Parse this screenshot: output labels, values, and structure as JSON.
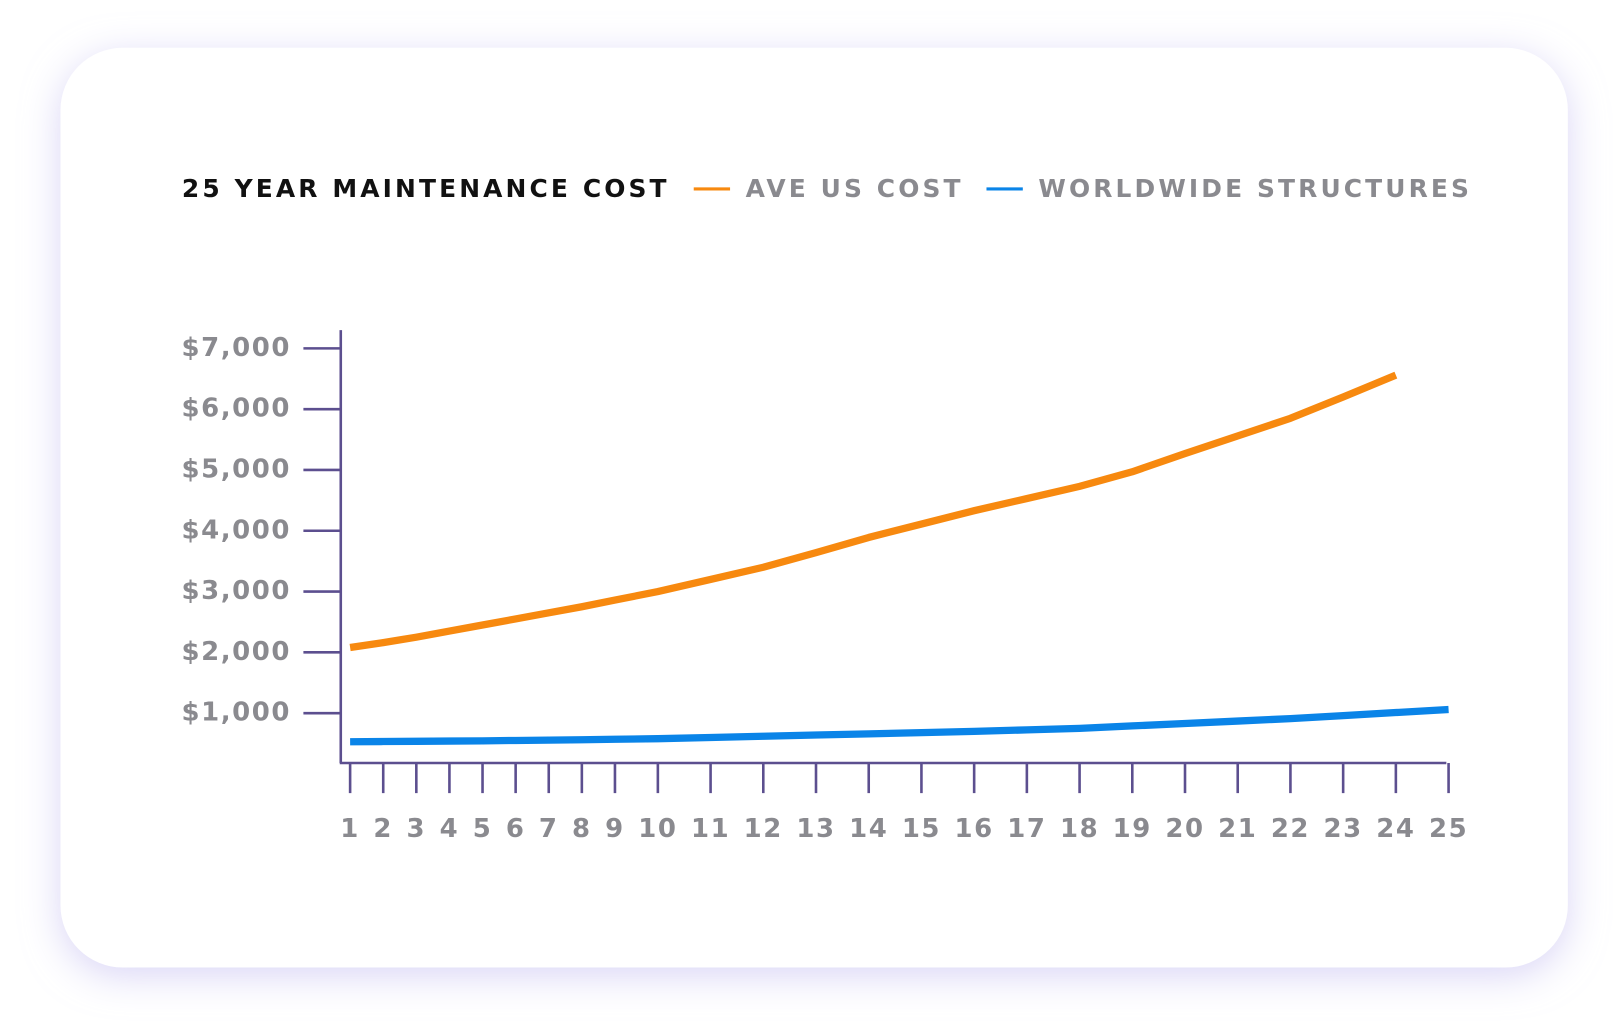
{
  "chart_data": {
    "type": "line",
    "title": "25 YEAR MAINTENANCE COST",
    "categories": [
      "1",
      "2",
      "3",
      "4",
      "5",
      "6",
      "7",
      "8",
      "9",
      "10",
      "11",
      "12",
      "13",
      "14",
      "15",
      "16",
      "17",
      "18",
      "19",
      "20",
      "21",
      "22",
      "23",
      "24",
      "25"
    ],
    "series": [
      {
        "name": "AVE US COST",
        "color": "#f7890f",
        "values": [
          2080,
          2160,
          2250,
          2350,
          2450,
          2550,
          2650,
          2750,
          2860,
          3000,
          3200,
          3400,
          3640,
          3890,
          4110,
          4330,
          4530,
          4730,
          4970,
          5270,
          5560,
          5850,
          6200,
          6560,
          null
        ]
      },
      {
        "name": "WORLDWIDE STRUCTURES",
        "color": "#0a84e8",
        "values": [
          530,
          533,
          537,
          541,
          545,
          551,
          557,
          563,
          570,
          580,
          600,
          620,
          640,
          660,
          680,
          700,
          725,
          750,
          790,
          830,
          870,
          910,
          960,
          1010,
          1060
        ]
      }
    ],
    "ylim": [
      180,
      7300
    ],
    "yticks": [
      {
        "value": 1000,
        "label": "$1,000"
      },
      {
        "value": 2000,
        "label": "$2,000"
      },
      {
        "value": 3000,
        "label": "$3,000"
      },
      {
        "value": 4000,
        "label": "$4,000"
      },
      {
        "value": 5000,
        "label": "$5,000"
      },
      {
        "value": 6000,
        "label": "$6,000"
      },
      {
        "value": 7000,
        "label": "$7,000"
      }
    ]
  }
}
